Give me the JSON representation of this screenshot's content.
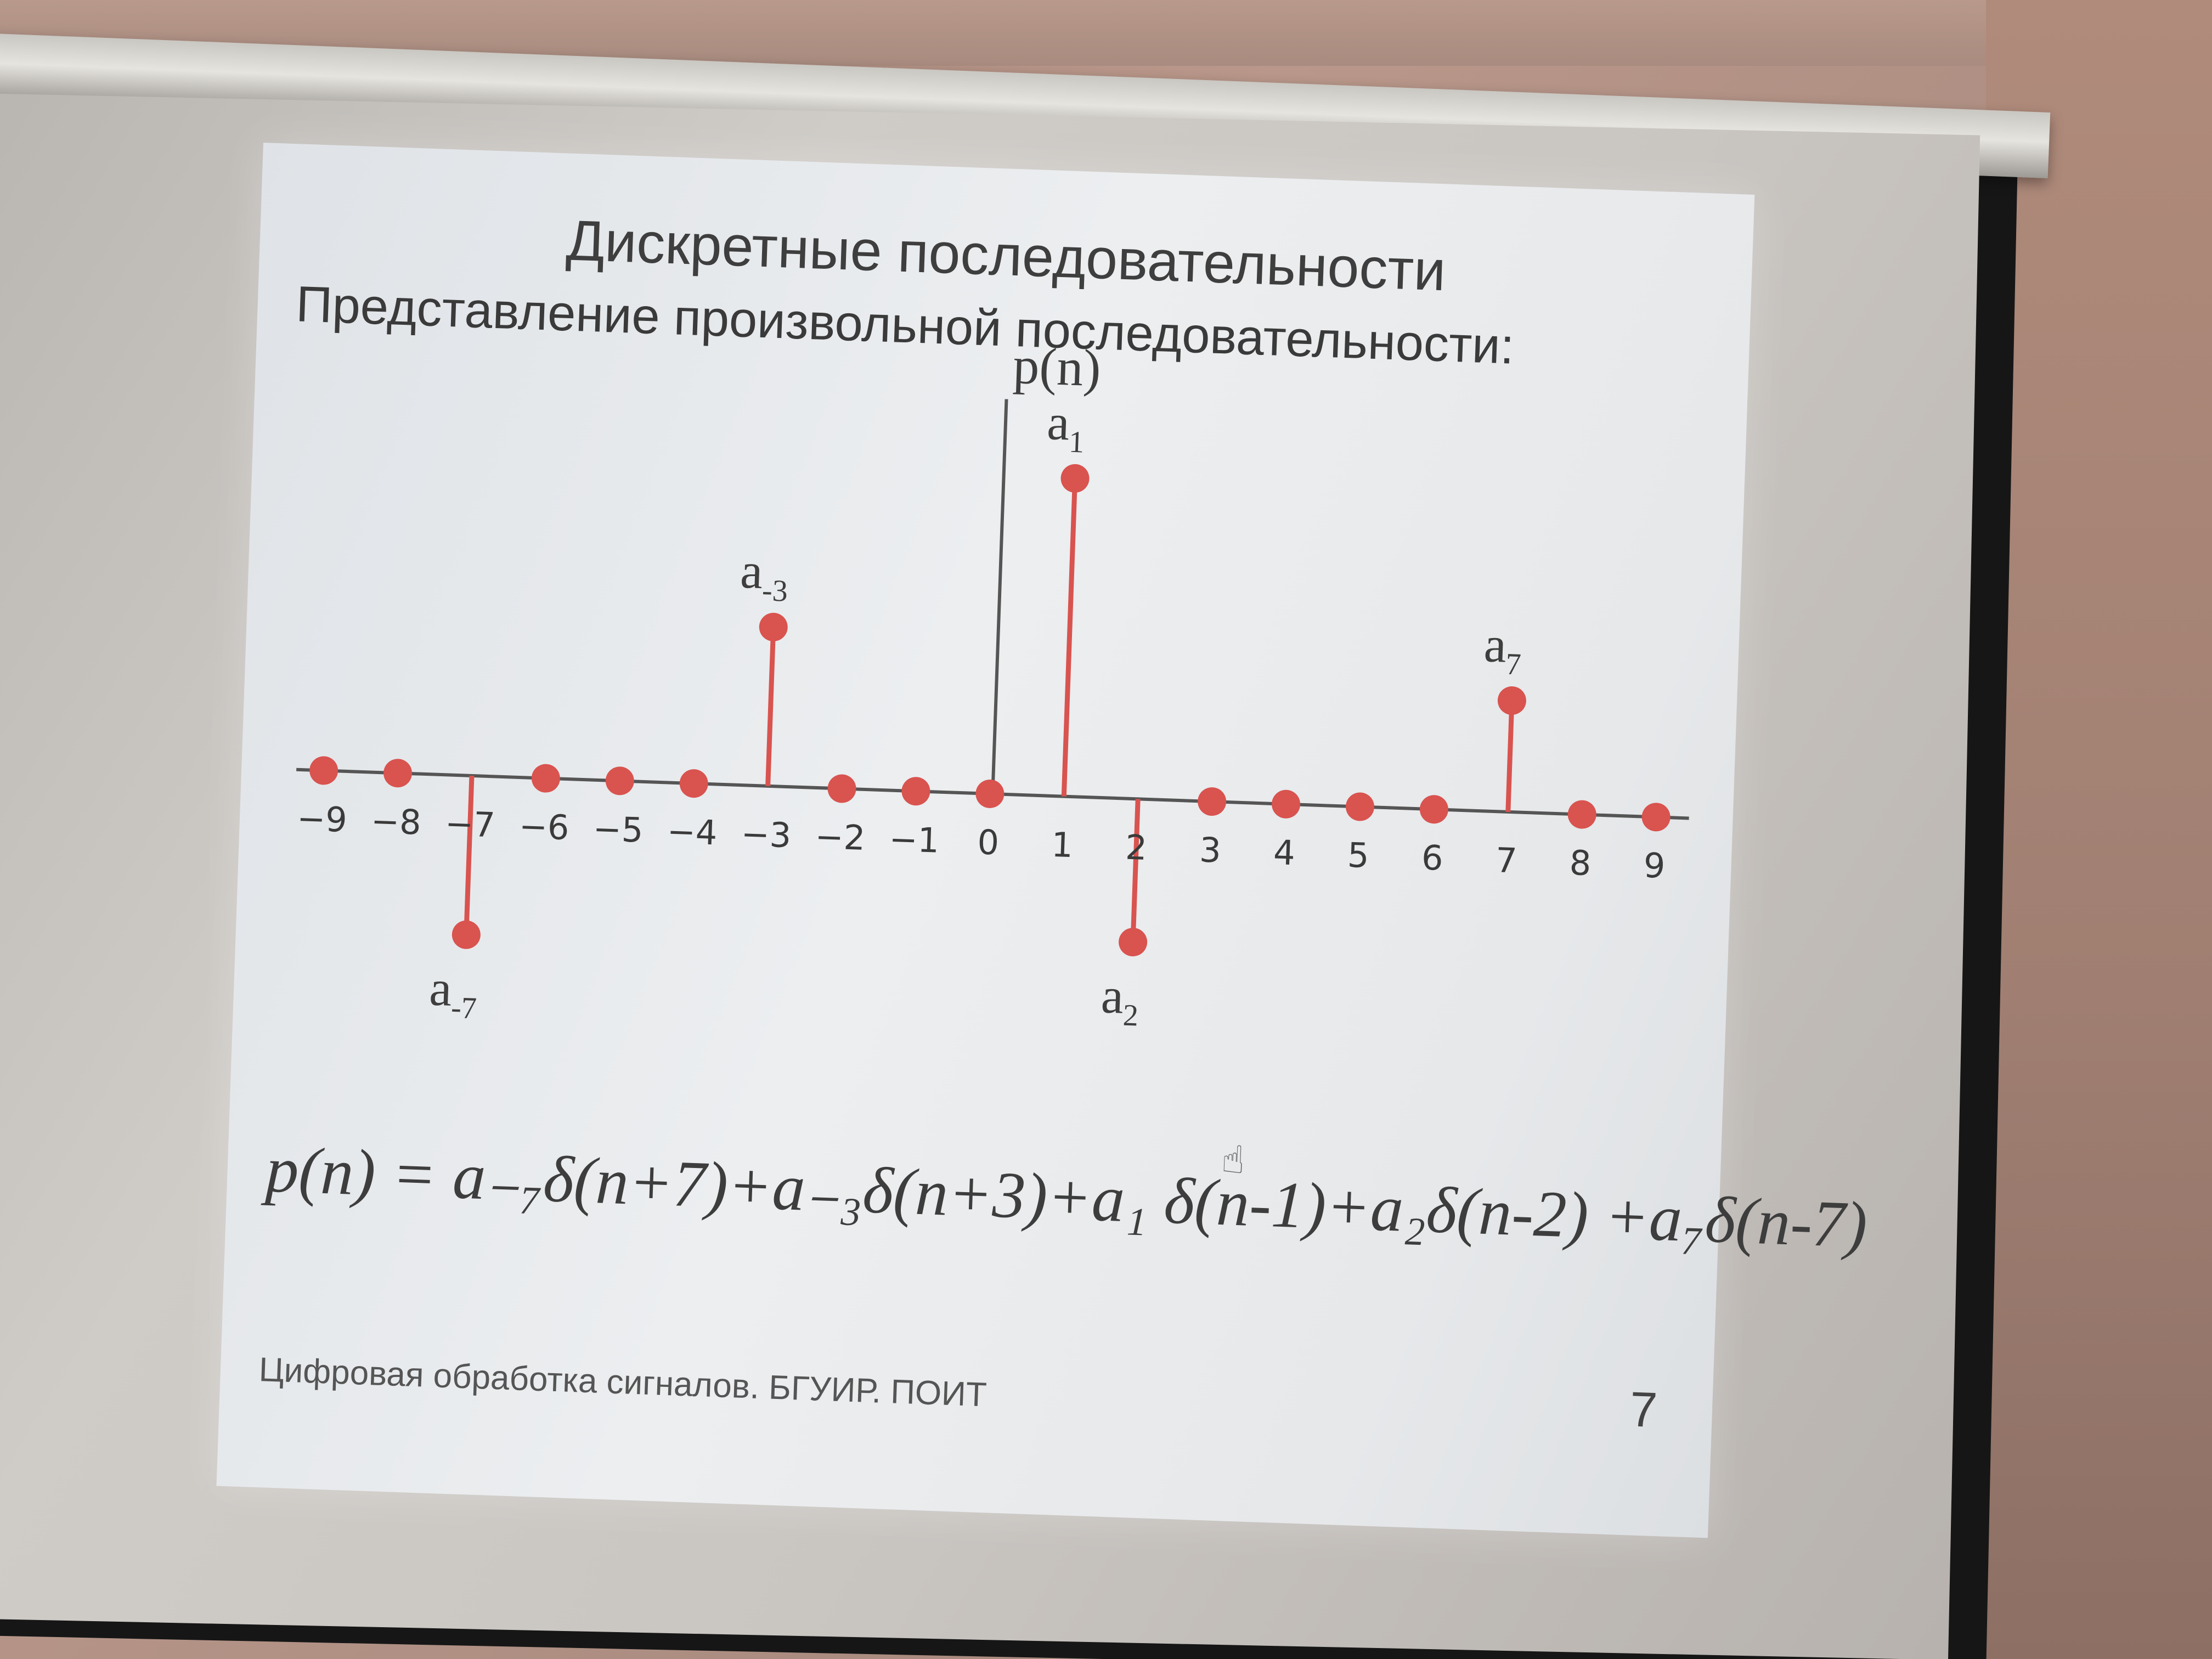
{
  "slide": {
    "title": "Дискретные последовательности",
    "subtitle": "Представление произвольной последовательности:",
    "axis_label": "p(n)",
    "formula": "p(n) = a₋₇δ(n+7)+a₋₃δ(n+3)+a₁ δ(n-1)+a₂δ(n-2) +a₇δ(n-7)",
    "footer": "Цифровая обработка сигналов. БГУИР. ПОИТ",
    "page_number": "7",
    "cursor_icon": "hand-pointer-icon"
  },
  "stem_plot": {
    "color": "#d9534f",
    "n_values": [
      -9,
      -8,
      -7,
      -6,
      -5,
      -4,
      -3,
      -2,
      -1,
      0,
      1,
      2,
      3,
      4,
      5,
      6,
      7,
      8,
      9
    ],
    "tick_labels": [
      "−9",
      "−8",
      "−7",
      "−6",
      "−5",
      "−4",
      "−3",
      "−2",
      "−1",
      "0",
      "1",
      "2",
      "3",
      "4",
      "5",
      "6",
      "7",
      "8",
      "9"
    ],
    "amplitudes": [
      0,
      0,
      -0.5,
      0,
      0,
      0,
      0.5,
      0,
      0,
      0,
      1,
      -0.45,
      0,
      0,
      0,
      0,
      0.35,
      0,
      0
    ],
    "labels": [
      {
        "n": -7,
        "base": "a",
        "sub": "-7"
      },
      {
        "n": -3,
        "base": "a",
        "sub": "-3"
      },
      {
        "n": 1,
        "base": "a",
        "sub": "1"
      },
      {
        "n": 2,
        "base": "a",
        "sub": "2"
      },
      {
        "n": 7,
        "base": "a",
        "sub": "7"
      }
    ]
  }
}
